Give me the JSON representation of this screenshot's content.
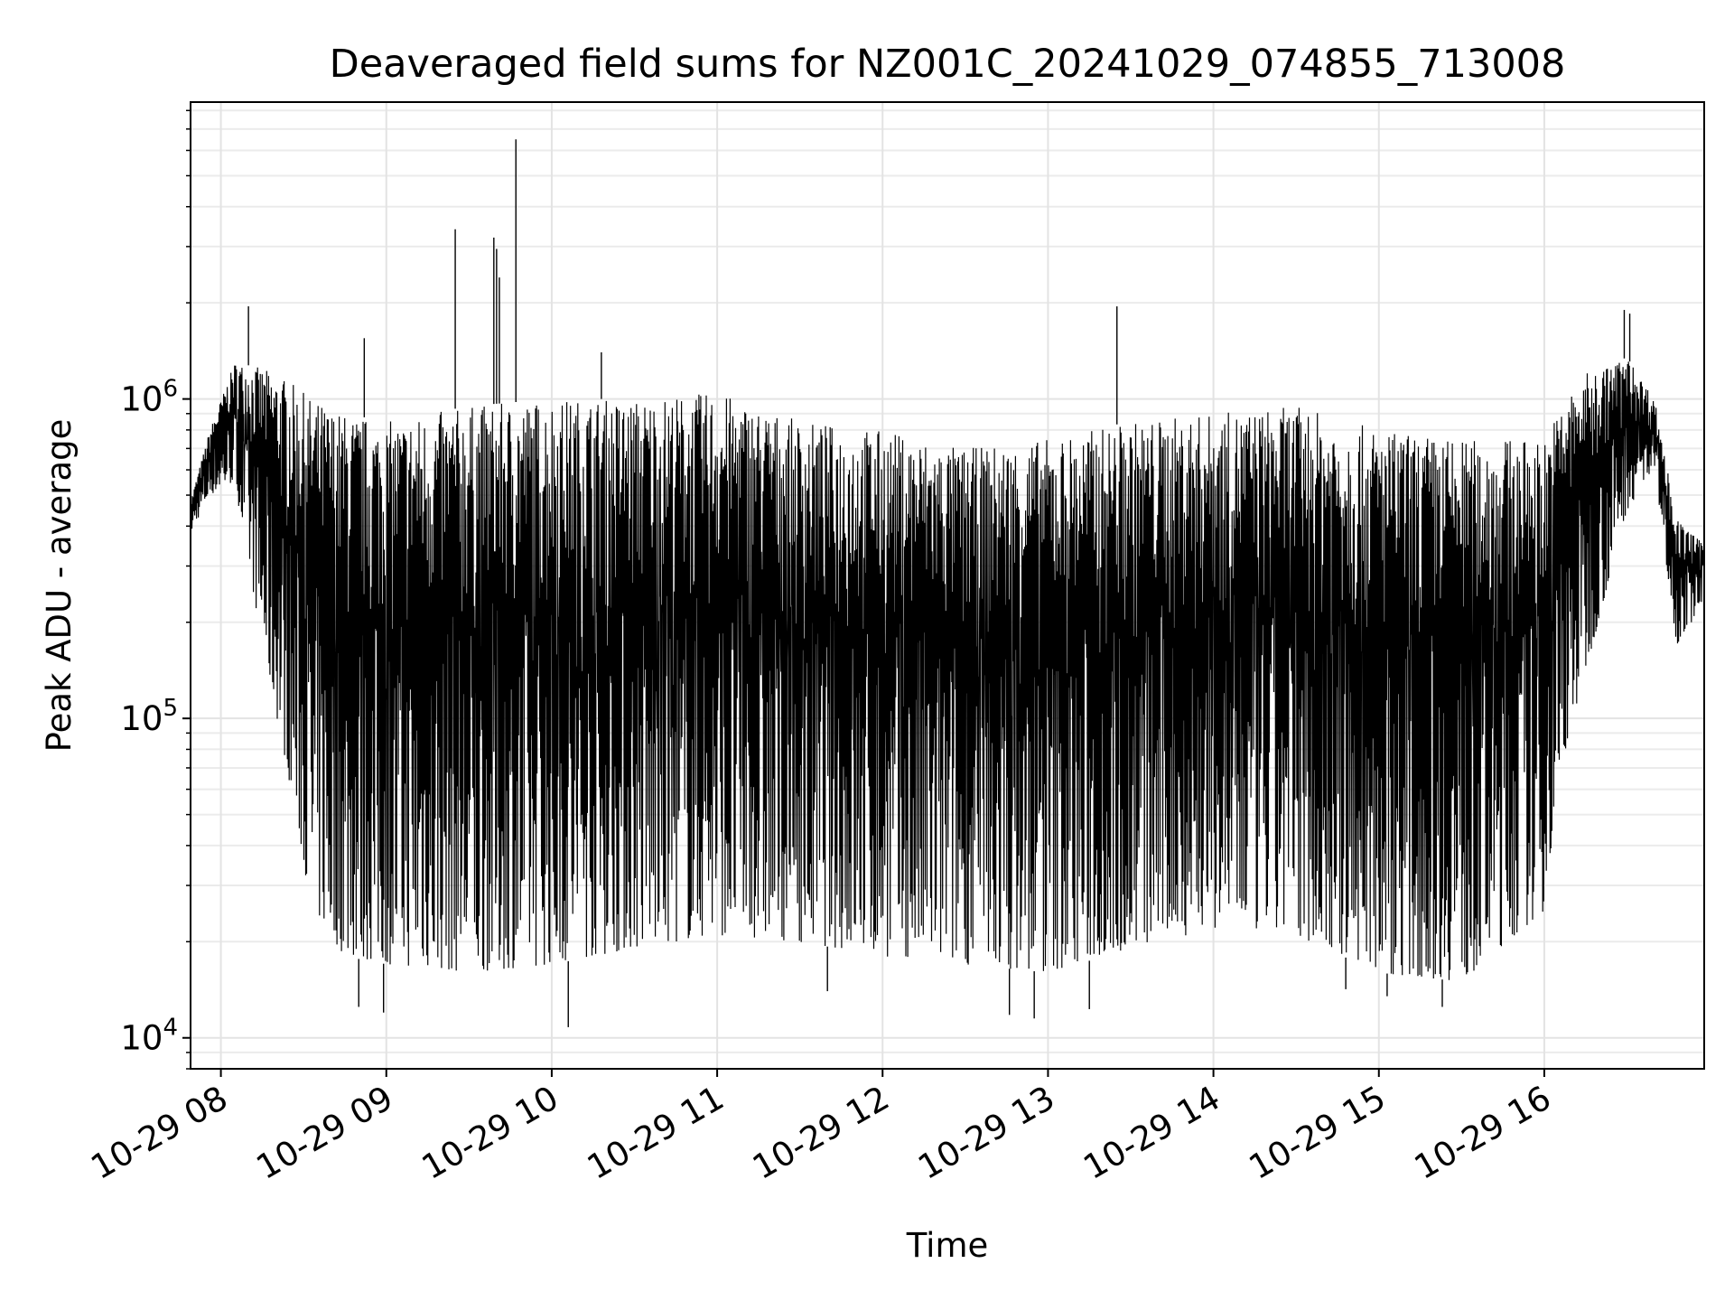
{
  "chart_data": {
    "type": "line",
    "title": "Deaveraged field sums for NZ001C_20241029_074855_713008",
    "xlabel": "Time",
    "ylabel": "Peak ADU - average",
    "yscale": "log",
    "ylim": [
      8000,
      8500000
    ],
    "xlim": [
      "2024-10-29 07:49",
      "2024-10-29 16:58"
    ],
    "grid": true,
    "line_color": "#000000",
    "x_ticks": [
      {
        "value": "2024-10-29 08:00",
        "label": "10-29 08"
      },
      {
        "value": "2024-10-29 09:00",
        "label": "10-29 09"
      },
      {
        "value": "2024-10-29 10:00",
        "label": "10-29 10"
      },
      {
        "value": "2024-10-29 11:00",
        "label": "10-29 11"
      },
      {
        "value": "2024-10-29 12:00",
        "label": "10-29 12"
      },
      {
        "value": "2024-10-29 13:00",
        "label": "10-29 13"
      },
      {
        "value": "2024-10-29 14:00",
        "label": "10-29 14"
      },
      {
        "value": "2024-10-29 15:00",
        "label": "10-29 15"
      },
      {
        "value": "2024-10-29 16:00",
        "label": "10-29 16"
      }
    ],
    "y_ticks": [
      {
        "value": 10000,
        "base": "10",
        "exp": "4"
      },
      {
        "value": 100000,
        "base": "10",
        "exp": "5"
      },
      {
        "value": 1000000,
        "base": "10",
        "exp": "6"
      }
    ],
    "envelope": {
      "times": [
        "2024-10-29 07:49",
        "2024-10-29 07:56",
        "2024-10-29 08:05",
        "2024-10-29 08:15",
        "2024-10-29 08:24",
        "2024-10-29 08:33",
        "2024-10-29 08:45",
        "2024-10-29 09:00",
        "2024-10-29 09:30",
        "2024-10-29 10:00",
        "2024-10-29 10:30",
        "2024-10-29 11:00",
        "2024-10-29 11:30",
        "2024-10-29 12:00",
        "2024-10-29 12:30",
        "2024-10-29 13:00",
        "2024-10-29 13:30",
        "2024-10-29 14:00",
        "2024-10-29 14:30",
        "2024-10-29 15:00",
        "2024-10-29 15:30",
        "2024-10-29 16:00",
        "2024-10-29 16:06",
        "2024-10-29 16:15",
        "2024-10-29 16:30",
        "2024-10-29 16:40",
        "2024-10-29 16:48",
        "2024-10-29 16:58"
      ],
      "upper": [
        480000,
        800000,
        1300000,
        1250000,
        1150000,
        1000000,
        900000,
        850000,
        950000,
        1000000,
        1000000,
        1050000,
        850000,
        800000,
        700000,
        750000,
        850000,
        900000,
        950000,
        800000,
        750000,
        750000,
        950000,
        1200000,
        1350000,
        1000000,
        420000,
        350000
      ],
      "lower": [
        380000,
        500000,
        550000,
        170000,
        70000,
        25000,
        18000,
        17000,
        16000,
        17000,
        19000,
        21000,
        20000,
        18000,
        17000,
        16000,
        19000,
        22000,
        21000,
        16000,
        15000,
        25000,
        70000,
        140000,
        450000,
        600000,
        170000,
        230000
      ]
    },
    "spikes": [
      {
        "time": "2024-10-29 08:10",
        "value": 1950000
      },
      {
        "time": "2024-10-29 08:52",
        "value": 1550000
      },
      {
        "time": "2024-10-29 09:25",
        "value": 3400000
      },
      {
        "time": "2024-10-29 09:39",
        "value": 3200000
      },
      {
        "time": "2024-10-29 09:40",
        "value": 2950000
      },
      {
        "time": "2024-10-29 09:41",
        "value": 2400000
      },
      {
        "time": "2024-10-29 09:47",
        "value": 6500000
      },
      {
        "time": "2024-10-29 10:18",
        "value": 1400000
      },
      {
        "time": "2024-10-29 13:25",
        "value": 1950000
      },
      {
        "time": "2024-10-29 16:29",
        "value": 1900000
      },
      {
        "time": "2024-10-29 16:31",
        "value": 1850000
      }
    ],
    "dips": [
      {
        "time": "2024-10-29 08:50",
        "value": 12500
      },
      {
        "time": "2024-10-29 08:59",
        "value": 12000
      },
      {
        "time": "2024-10-29 10:06",
        "value": 10800
      },
      {
        "time": "2024-10-29 11:40",
        "value": 14000
      },
      {
        "time": "2024-10-29 12:46",
        "value": 11800
      },
      {
        "time": "2024-10-29 12:55",
        "value": 11500
      },
      {
        "time": "2024-10-29 13:15",
        "value": 12300
      },
      {
        "time": "2024-10-29 14:48",
        "value": 14200
      },
      {
        "time": "2024-10-29 15:03",
        "value": 13500
      },
      {
        "time": "2024-10-29 15:23",
        "value": 12500
      }
    ]
  }
}
